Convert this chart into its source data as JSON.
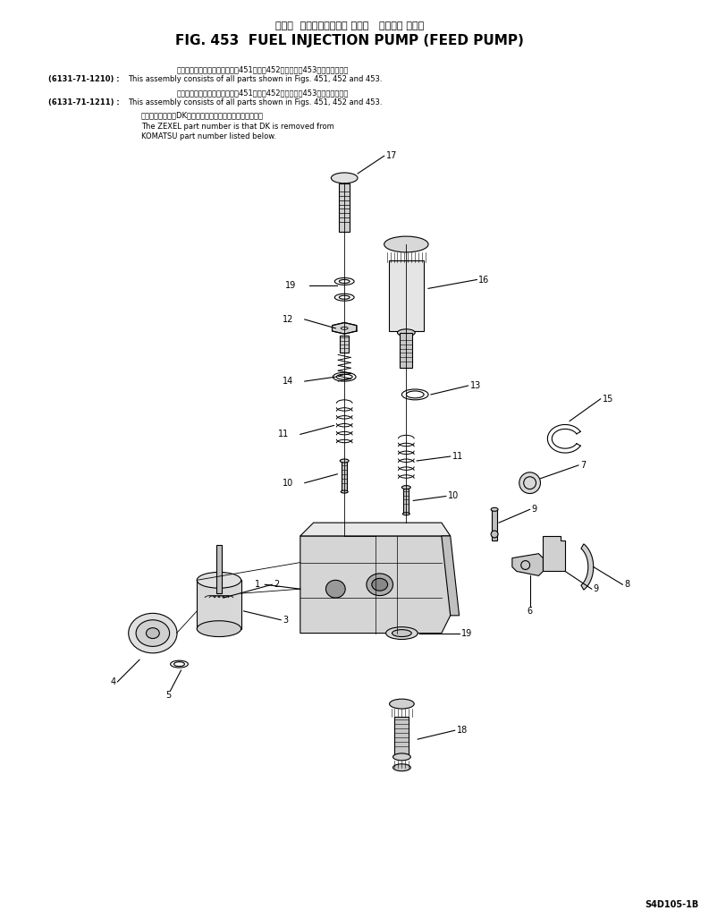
{
  "title_japanese": "フェル  インジェクション ポンプ   フィード ポンプ",
  "title_main": "FIG. 453  FUEL INJECTION PUMP (FEED PUMP)",
  "note1_label": "(6131-71-1210) :",
  "note1_jp": "このアセンブリの構成部品は第451図、第452図および第453図を参みます。",
  "note1_en": "This assembly consists of all parts shown in Figs. 451, 452 and 453.",
  "note2_label": "(6131-71-1211) :",
  "note2_jp": "このアセンブリの構成部品は第451図、第452図および第453図を参みます。",
  "note2_en": "This assembly consists of all parts shown in Figs. 451, 452 and 453.",
  "note3_jp": "品番のメーカ記号DKを除いたものがゼクセルの品番です。",
  "note3_en1": "The ZEXEL part number is that DK is removed from",
  "note3_en2": "KOMATSU part number listed below.",
  "page_id": "S4D105-1B",
  "bg_color": "#ffffff",
  "line_color": "#000000"
}
